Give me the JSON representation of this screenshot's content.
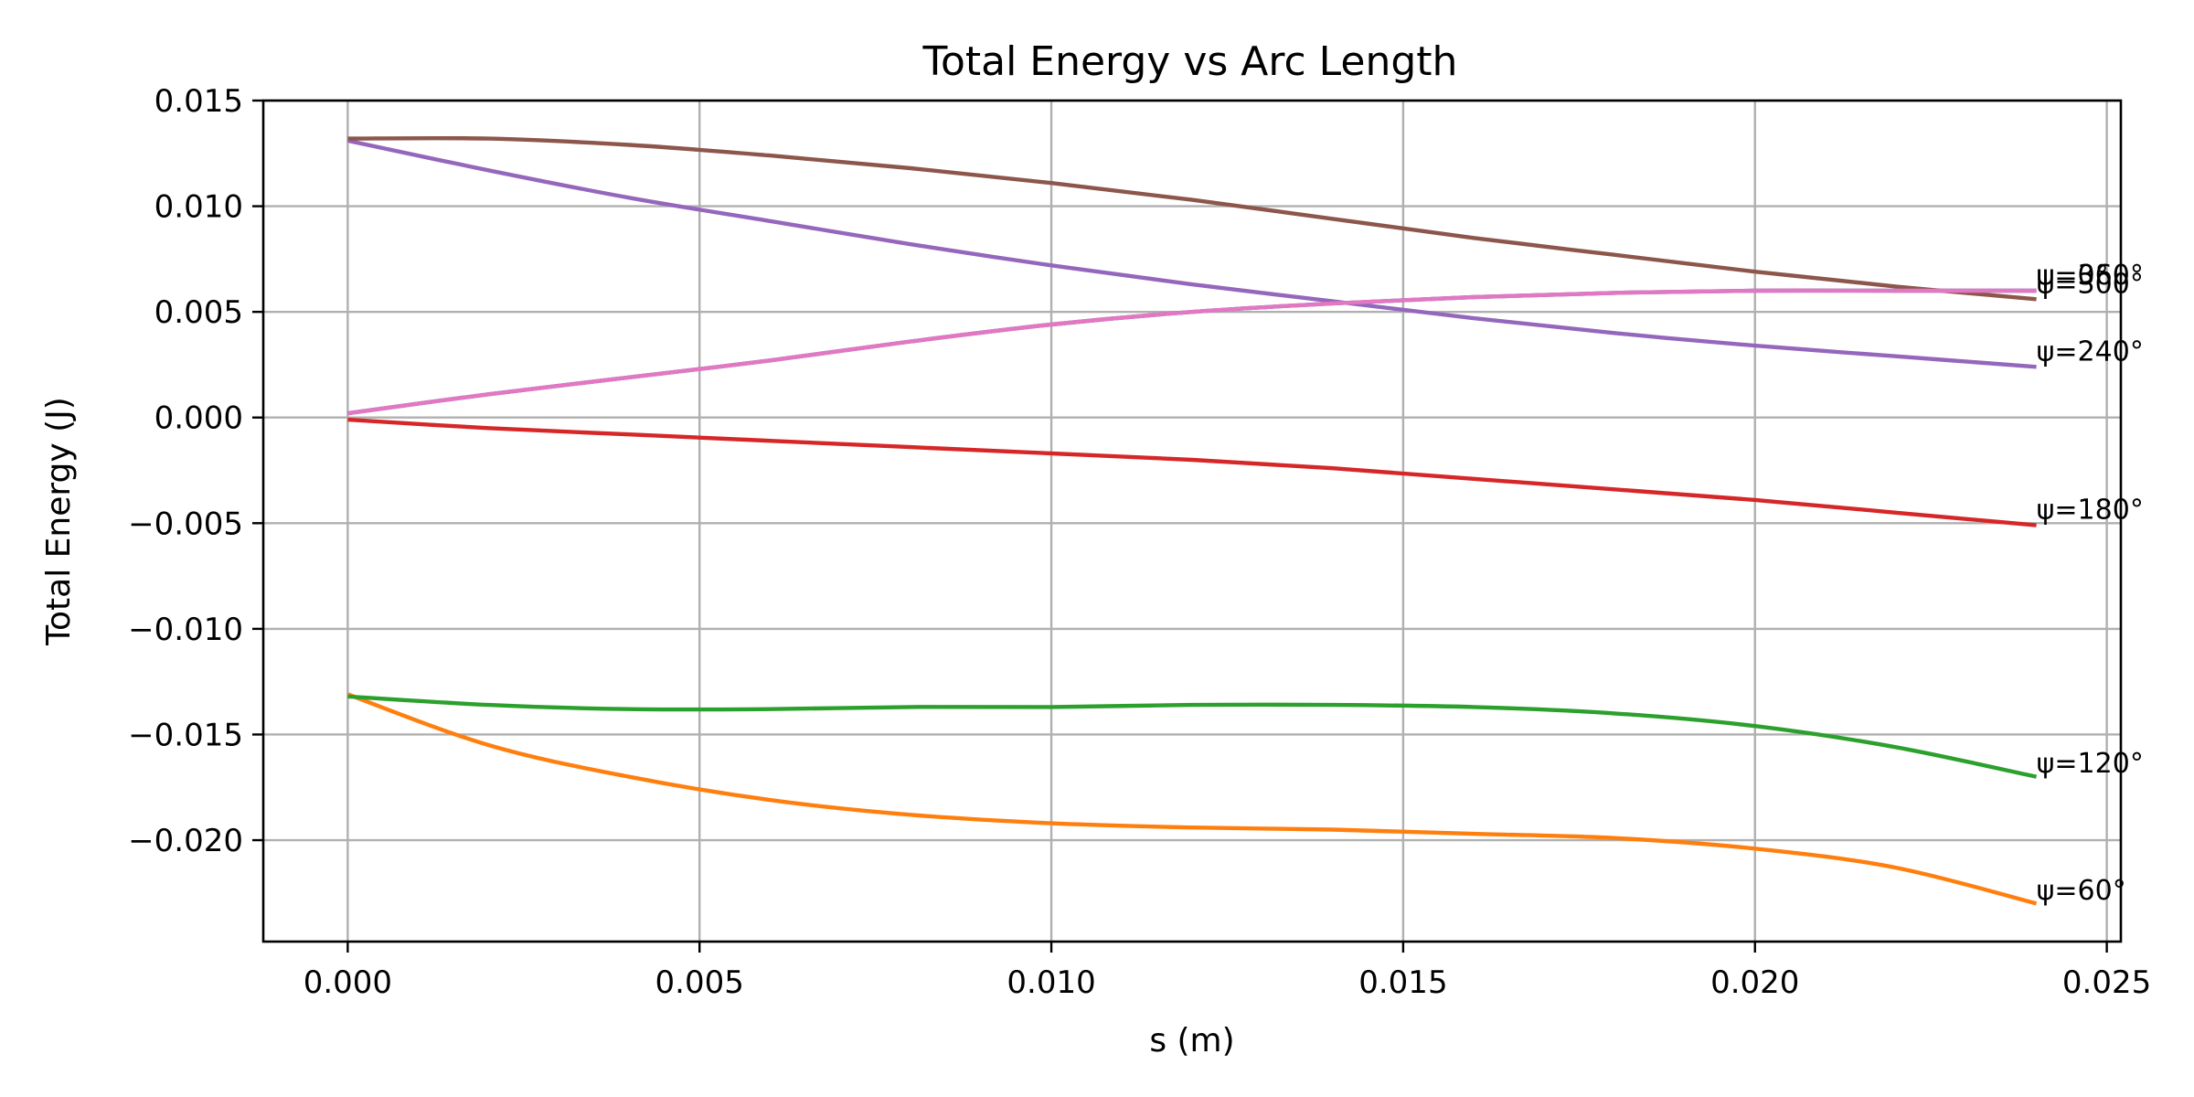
{
  "chart_data": {
    "type": "line",
    "title": "Total Energy vs Arc Length",
    "xlabel": "s (m)",
    "ylabel": "Total Energy (J)",
    "xlim": [
      -0.0012,
      0.0252
    ],
    "ylim": [
      -0.0248,
      0.015
    ],
    "xticks": [
      0.0,
      0.005,
      0.01,
      0.015,
      0.02,
      0.025
    ],
    "xtick_labels": [
      "0.000",
      "0.005",
      "0.010",
      "0.015",
      "0.020",
      "0.025"
    ],
    "yticks": [
      -0.02,
      -0.015,
      -0.01,
      -0.005,
      0.0,
      0.005,
      0.01,
      0.015
    ],
    "ytick_labels": [
      "−0.020",
      "−0.015",
      "−0.010",
      "−0.005",
      "0.000",
      "0.005",
      "0.010",
      "0.015"
    ],
    "grid": true,
    "x": [
      0.0,
      0.002,
      0.004,
      0.006,
      0.008,
      0.01,
      0.012,
      0.014,
      0.016,
      0.018,
      0.02,
      0.022,
      0.024
    ],
    "series": [
      {
        "name": "",
        "color": "#1f77b4",
        "values": [
          0.0002,
          0.0011,
          0.0019,
          0.0027,
          0.0036,
          0.0044,
          0.005,
          0.0054,
          0.0057,
          0.0059,
          0.006,
          0.006,
          0.006
        ]
      },
      {
        "name": "",
        "color": "#ff7f0e",
        "values": [
          -0.0131,
          -0.0155,
          -0.017,
          -0.0181,
          -0.0188,
          -0.0192,
          -0.0194,
          -0.0195,
          -0.0197,
          -0.0199,
          -0.0204,
          -0.0213,
          -0.023
        ]
      },
      {
        "name": "",
        "color": "#2ca02c",
        "values": [
          -0.0132,
          -0.0136,
          -0.0138,
          -0.0138,
          -0.0137,
          -0.0137,
          -0.0136,
          -0.0136,
          -0.0137,
          -0.014,
          -0.0146,
          -0.0156,
          -0.017
        ]
      },
      {
        "name": "",
        "color": "#d62728",
        "values": [
          -0.0001,
          -0.0005,
          -0.0008,
          -0.0011,
          -0.0014,
          -0.0017,
          -0.002,
          -0.0024,
          -0.0029,
          -0.0034,
          -0.0039,
          -0.0045,
          -0.0051
        ]
      },
      {
        "name": "",
        "color": "#9467bd",
        "values": [
          0.0131,
          0.0117,
          0.0104,
          0.0093,
          0.0082,
          0.0072,
          0.0063,
          0.0055,
          0.0047,
          0.004,
          0.0034,
          0.0029,
          0.0024
        ]
      },
      {
        "name": "",
        "color": "#8c564b",
        "values": [
          0.0132,
          0.0132,
          0.0129,
          0.0124,
          0.0118,
          0.0111,
          0.0103,
          0.0094,
          0.0085,
          0.0077,
          0.0069,
          0.0062,
          0.0056
        ]
      },
      {
        "name": "",
        "color": "#e377c2",
        "values": [
          0.0002,
          0.0011,
          0.0019,
          0.0027,
          0.0036,
          0.0044,
          0.005,
          0.0054,
          0.0057,
          0.0059,
          0.006,
          0.006,
          0.006
        ]
      }
    ],
    "annotations": [
      {
        "text": "ψ=0°",
        "x": 0.024,
        "y": 0.0063
      },
      {
        "text": "ψ=360°",
        "x": 0.024,
        "y": 0.0063
      },
      {
        "text": "ψ=300°",
        "x": 0.024,
        "y": 0.0059
      },
      {
        "text": "ψ=240°",
        "x": 0.024,
        "y": 0.0027
      },
      {
        "text": "ψ=180°",
        "x": 0.024,
        "y": -0.0048
      },
      {
        "text": "ψ=120°",
        "x": 0.024,
        "y": -0.0168
      },
      {
        "text": "ψ=60°",
        "x": 0.024,
        "y": -0.0228
      }
    ]
  }
}
